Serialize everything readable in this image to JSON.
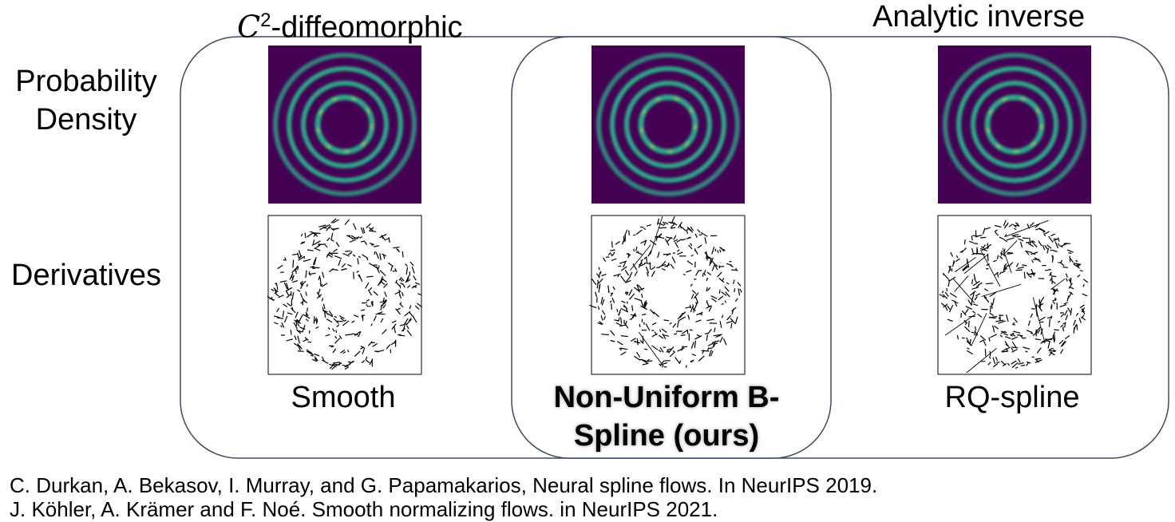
{
  "headers": {
    "c2_symbol": "C",
    "c2_exponent": "2",
    "c2_text": "-diffeomorphic",
    "analytic": "Analytic inverse"
  },
  "row_labels": {
    "density": [
      "Probability",
      "Density"
    ],
    "derivatives": "Derivatives"
  },
  "methods": [
    {
      "label": "Smooth"
    },
    {
      "label_lines": [
        "Non-Uniform B-",
        "Spline (ours)"
      ]
    },
    {
      "label": "RQ-spline"
    }
  ],
  "references": [
    "C. Durkan, A. Bekasov, I. Murray, and G. Papamakarios, Neural spline flows. In NeurIPS 2019.",
    "J. Köhler, A. Krämer and F. Noé. Smooth normalizing flows. in NeurIPS 2021."
  ],
  "colors": {
    "group_border": "#3d4a5f",
    "density_background": "#440154",
    "density_ring": "#2bb08a",
    "density_ring_highlight": "#b9de2d",
    "arrow_ink": "#000000"
  }
}
